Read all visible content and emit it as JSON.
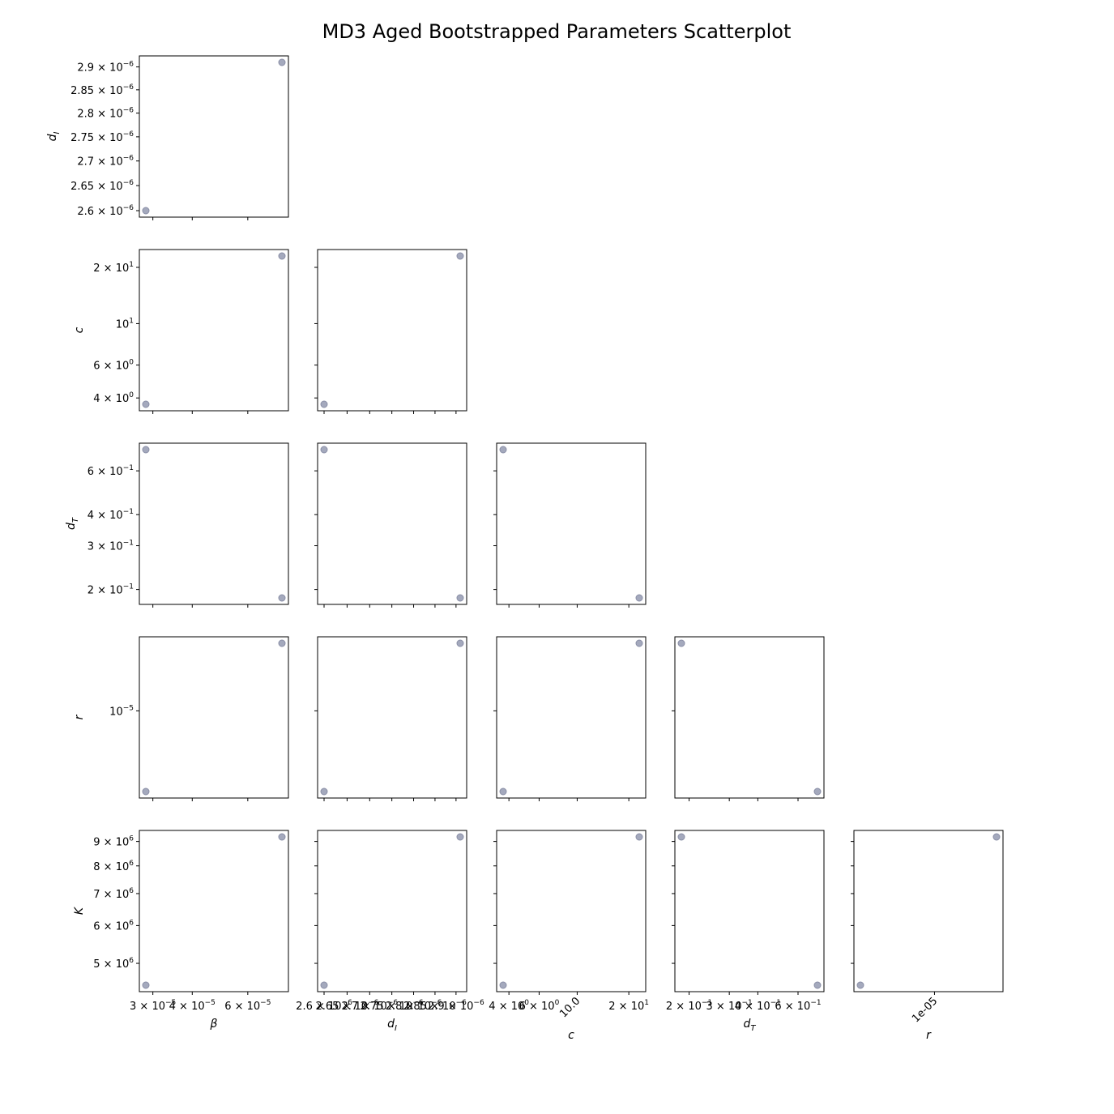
{
  "chart_data": {
    "type": "scatter",
    "title": "MD3 Aged Bootstrapped Parameters Scatterplot",
    "variables": [
      {
        "key": "beta",
        "label": "β",
        "scale": "log"
      },
      {
        "key": "dI",
        "label": "d_I",
        "scale": "log"
      },
      {
        "key": "c",
        "label": "c",
        "scale": "log"
      },
      {
        "key": "dT",
        "label": "d_T",
        "scale": "log"
      },
      {
        "key": "r",
        "label": "r",
        "scale": "log"
      },
      {
        "key": "K",
        "label": "K",
        "scale": "log"
      }
    ],
    "samples": [
      {
        "beta": 2.85e-05,
        "dI": 2.6e-06,
        "c": 3.7,
        "dT": 0.73,
        "r": 3.9e-06,
        "K": 4500000
      },
      {
        "beta": 7.7e-05,
        "dI": 2.91e-06,
        "c": 23.0,
        "dT": 0.185,
        "r": 2.2e-05,
        "K": 9200000
      }
    ],
    "x_ticks": {
      "beta": [
        {
          "value": 3e-05,
          "label": "3 × 10⁻⁵"
        },
        {
          "value": 4e-05,
          "label": "4 × 10⁻⁵"
        },
        {
          "value": 6e-05,
          "label": "6 × 10⁻⁵"
        }
      ],
      "dI": [
        {
          "value": 2.6e-06,
          "label": "2.6 × 10⁻⁶"
        },
        {
          "value": 2.65e-06,
          "label": "2.65 × 10⁻⁶"
        },
        {
          "value": 2.7e-06,
          "label": "2.7 × 10⁻⁶"
        },
        {
          "value": 2.75e-06,
          "label": "2.75 × 10⁻⁶"
        },
        {
          "value": 2.8e-06,
          "label": "2.8 × 10⁻⁶"
        },
        {
          "value": 2.85e-06,
          "label": "2.85 × 10⁻⁶"
        },
        {
          "value": 2.9e-06,
          "label": "2.9 × 10⁻⁶"
        }
      ],
      "c": [
        {
          "value": 4,
          "label": "4 × 10⁰"
        },
        {
          "value": 6,
          "label": "6 × 10⁰"
        },
        {
          "value": 10,
          "label": "10.0",
          "rotated": true
        },
        {
          "value": 20,
          "label": "2 × 10¹"
        }
      ],
      "dT": [
        {
          "value": 0.2,
          "label": "2 × 10⁻¹"
        },
        {
          "value": 0.3,
          "label": "3 × 10⁻¹"
        },
        {
          "value": 0.4,
          "label": "4 × 10⁻¹"
        },
        {
          "value": 0.6,
          "label": "6 × 10⁻¹"
        }
      ],
      "r": [
        {
          "value": 1e-05,
          "label": "1e-05",
          "rotated": true
        }
      ]
    },
    "y_ticks": {
      "dI": [
        {
          "value": 2.6e-06,
          "label": "2.6 × 10⁻⁶"
        },
        {
          "value": 2.65e-06,
          "label": "2.65 × 10⁻⁶"
        },
        {
          "value": 2.7e-06,
          "label": "2.7 × 10⁻⁶"
        },
        {
          "value": 2.75e-06,
          "label": "2.75 × 10⁻⁶"
        },
        {
          "value": 2.8e-06,
          "label": "2.8 × 10⁻⁶"
        },
        {
          "value": 2.85e-06,
          "label": "2.85 × 10⁻⁶"
        },
        {
          "value": 2.9e-06,
          "label": "2.9 × 10⁻⁶"
        }
      ],
      "c": [
        {
          "value": 4,
          "label": "4 × 10⁰"
        },
        {
          "value": 6,
          "label": "6 × 10⁰"
        },
        {
          "value": 10,
          "label": "10¹"
        },
        {
          "value": 20,
          "label": "2 × 10¹"
        }
      ],
      "dT": [
        {
          "value": 0.2,
          "label": "2 × 10⁻¹"
        },
        {
          "value": 0.3,
          "label": "3 × 10⁻¹"
        },
        {
          "value": 0.4,
          "label": "4 × 10⁻¹"
        },
        {
          "value": 0.6,
          "label": "6 × 10⁻¹"
        }
      ],
      "r": [
        {
          "value": 1e-05,
          "label": "10⁻⁵"
        }
      ],
      "K": [
        {
          "value": 5000000,
          "label": "5 × 10⁶"
        },
        {
          "value": 6000000,
          "label": "6 × 10⁶"
        },
        {
          "value": 7000000,
          "label": "7 × 10⁶"
        },
        {
          "value": 8000000,
          "label": "8 × 10⁶"
        },
        {
          "value": 9000000,
          "label": "9 × 10⁶"
        }
      ]
    },
    "grid": false,
    "legend": "none",
    "colors": {
      "point_fill": "#a4a9bd",
      "point_edge": "#8a8fa6",
      "frame": "#000000"
    }
  }
}
